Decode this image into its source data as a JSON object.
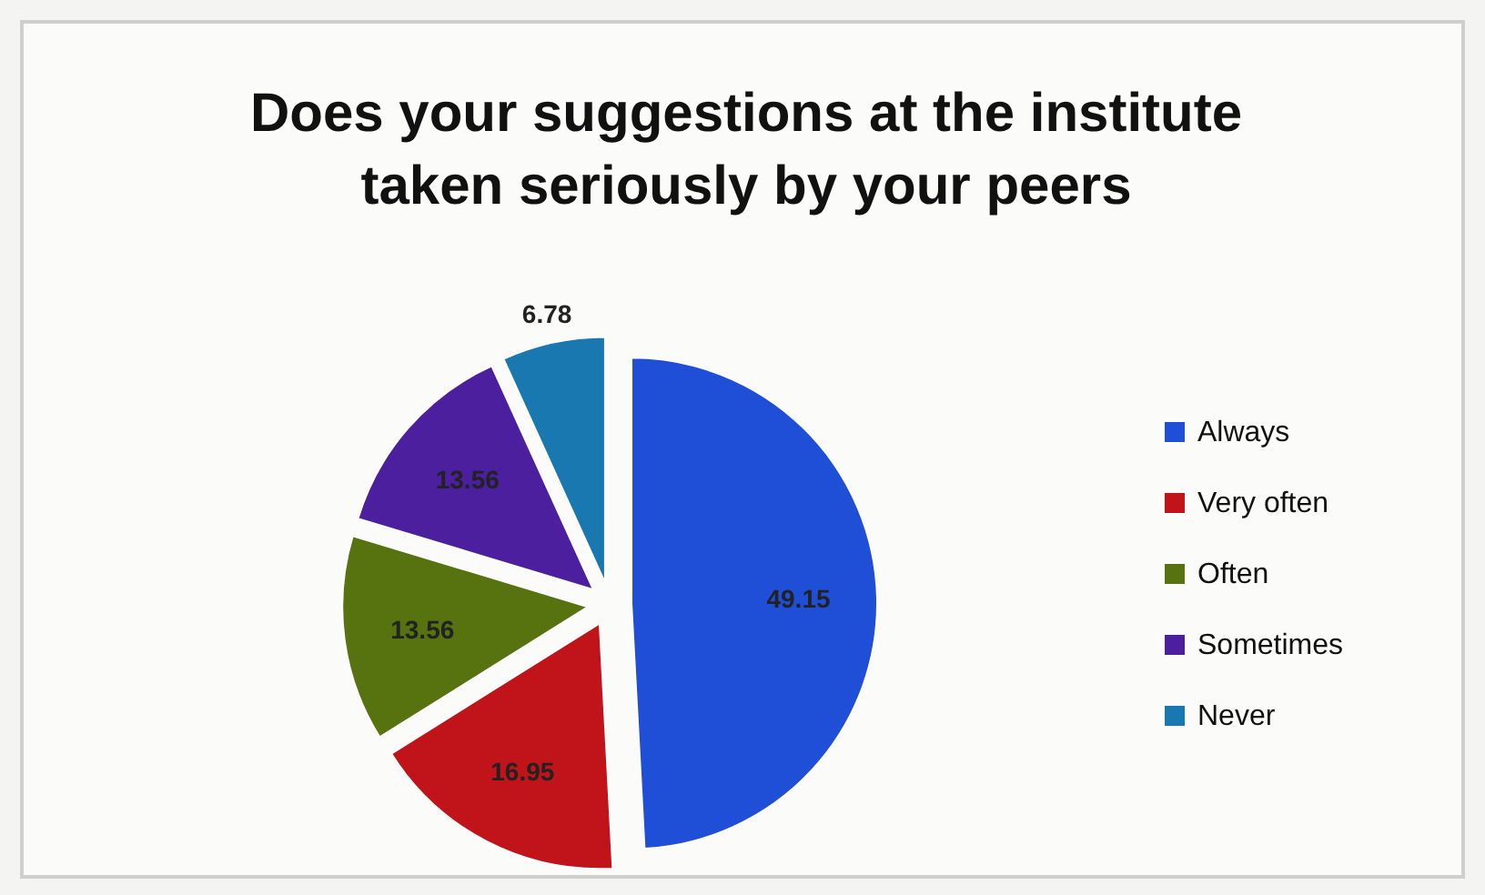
{
  "chart_data": {
    "type": "pie",
    "title": "Does your suggestions at the institute taken seriously by your peers",
    "categories": [
      "Always",
      "Very often",
      "Often",
      "Sometimes",
      "Never"
    ],
    "values": [
      49.15,
      16.95,
      13.56,
      13.56,
      6.78
    ],
    "colors": [
      "#1f4fd6",
      "#c0141a",
      "#56730f",
      "#4b1f9e",
      "#1a78b0"
    ],
    "data_labels": true,
    "legend": "right"
  }
}
